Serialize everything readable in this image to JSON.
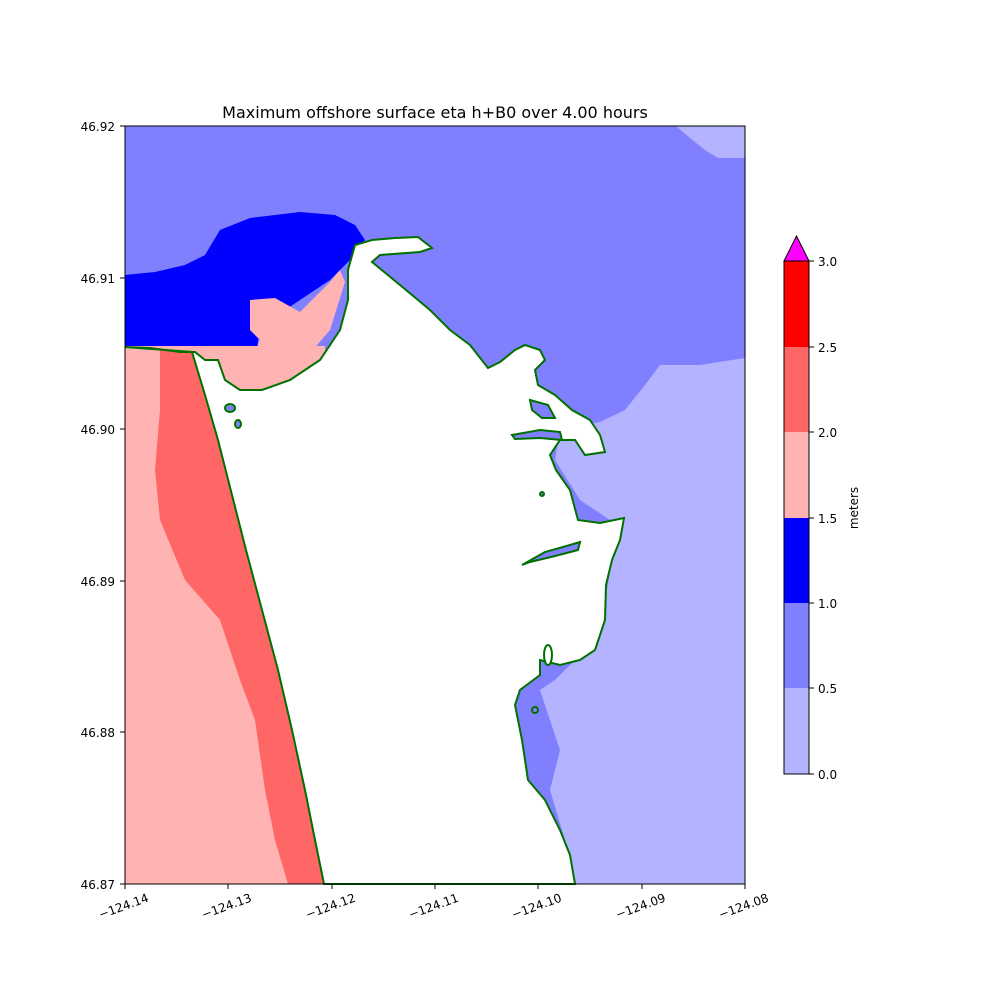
{
  "title": "Maximum offshore surface eta h+B0 over 4.00 hours",
  "x_ticks": [
    "−124.14",
    "−124.13",
    "−124.12",
    "−124.11",
    "−124.10",
    "−124.09",
    "−124.08"
  ],
  "y_ticks": [
    "46.92",
    "46.91",
    "46.90",
    "46.89",
    "46.88",
    "46.87"
  ],
  "colorbar": {
    "label": "meters",
    "ticks": [
      "0.0",
      "0.5",
      "1.0",
      "1.5",
      "2.0",
      "2.5",
      "3.0"
    ],
    "levels": [
      {
        "range": [
          0.0,
          0.5
        ],
        "color": "#b3b3ff"
      },
      {
        "range": [
          0.5,
          1.0
        ],
        "color": "#8080ff"
      },
      {
        "range": [
          1.0,
          1.5
        ],
        "color": "#0000ff"
      },
      {
        "range": [
          1.5,
          2.0
        ],
        "color": "#ffb3b3"
      },
      {
        "range": [
          2.0,
          2.5
        ],
        "color": "#ff6666"
      },
      {
        "range": [
          2.5,
          3.0
        ],
        "color": "#ff0000"
      }
    ],
    "extend_max_color": "#ff00ff"
  },
  "colors": {
    "land": "#ffffff",
    "shoreline": "#007000"
  },
  "chart_data": {
    "type": "heatmap",
    "xlim": [
      -124.14,
      -124.08
    ],
    "ylim": [
      46.87,
      46.92
    ],
    "x_ticks": [
      -124.14,
      -124.13,
      -124.12,
      -124.11,
      -124.1,
      -124.09,
      -124.08
    ],
    "y_ticks": [
      46.92,
      46.91,
      46.9,
      46.89,
      46.88,
      46.87
    ],
    "levels": [
      0.0,
      0.5,
      1.0,
      1.5,
      2.0,
      2.5,
      3.0
    ],
    "units": "meters",
    "regions": [
      {
        "area": "northern bay / open water",
        "range_m": [
          0.5,
          1.0
        ]
      },
      {
        "area": "north-east corner",
        "range_m": [
          0.0,
          0.5
        ]
      },
      {
        "area": "eastern bay south of 46.905",
        "range_m": [
          0.0,
          0.5
        ]
      },
      {
        "area": "channel entrance north-west",
        "range_m": [
          1.0,
          1.5
        ]
      },
      {
        "area": "inner entrance pocket",
        "range_m": [
          1.5,
          2.0
        ]
      },
      {
        "area": "ocean coast strip",
        "range_m": [
          2.0,
          2.5
        ]
      },
      {
        "area": "ocean offshore west",
        "range_m": [
          1.5,
          2.0
        ]
      }
    ]
  }
}
